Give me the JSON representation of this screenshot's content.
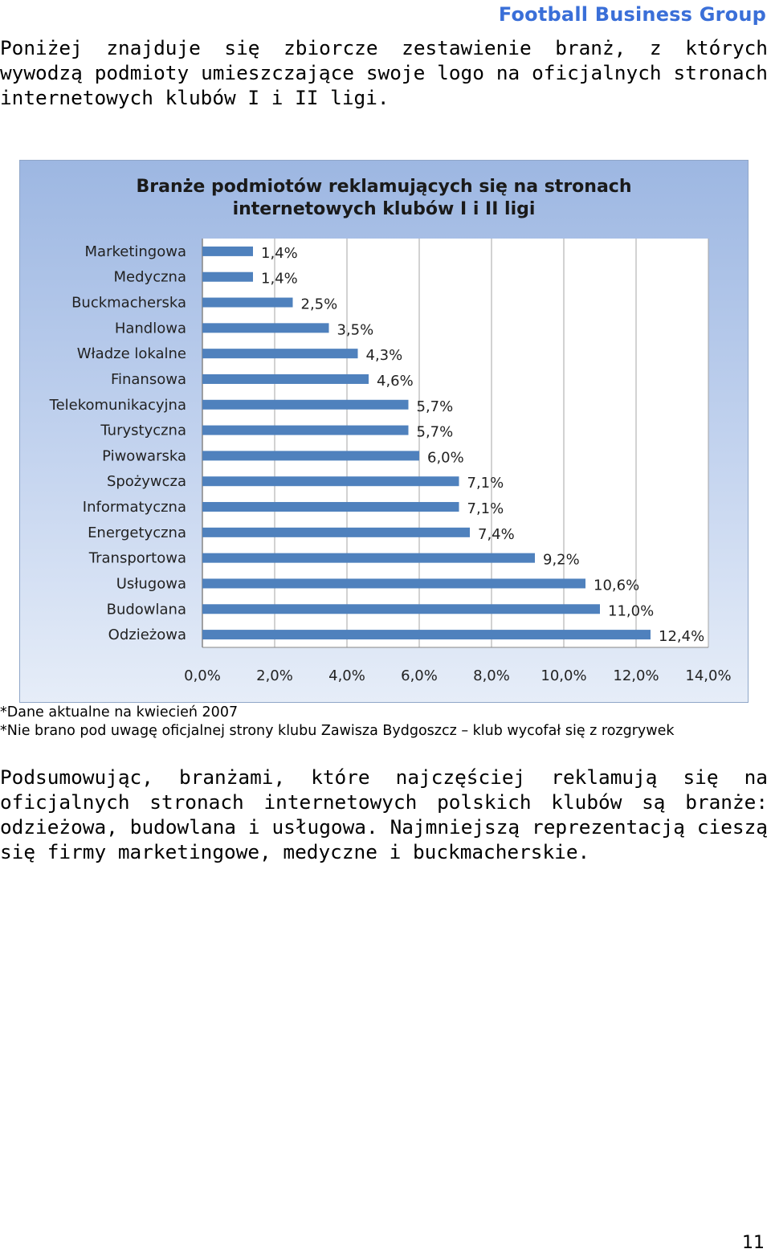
{
  "header": {
    "brand": "Football Business Group"
  },
  "intro": "Poniżej znajduje się zbiorcze zestawienie branż, z których wywodzą podmioty umieszczające swoje logo na oficjalnych stronach internetowych klubów I i II ligi.",
  "chart_data": {
    "type": "bar",
    "orientation": "horizontal",
    "title_line1": "Branże podmiotów reklamujących się na stronach",
    "title_line2": "internetowych klubów I i II ligi",
    "categories": [
      "Marketingowa",
      "Medyczna",
      "Buckmacherska",
      "Handlowa",
      "Władze lokalne",
      "Finansowa",
      "Telekomunikacyjna",
      "Turystyczna",
      "Piwowarska",
      "Spożywcza",
      "Informatyczna",
      "Energetyczna",
      "Transportowa",
      "Usługowa",
      "Budowlana",
      "Odzieżowa"
    ],
    "values": [
      1.4,
      1.4,
      2.5,
      3.5,
      4.3,
      4.6,
      5.7,
      5.7,
      6.0,
      7.1,
      7.1,
      7.4,
      9.2,
      10.6,
      11.0,
      12.4
    ],
    "data_labels": [
      "1,4%",
      "1,4%",
      "2,5%",
      "3,5%",
      "4,3%",
      "4,6%",
      "5,7%",
      "5,7%",
      "6,0%",
      "7,1%",
      "7,1%",
      "7,4%",
      "9,2%",
      "10,6%",
      "11,0%",
      "12,4%"
    ],
    "xlim": [
      0,
      14
    ],
    "x_ticks": [
      0,
      2,
      4,
      6,
      8,
      10,
      12,
      14
    ],
    "x_tick_labels": [
      "0,0%",
      "2,0%",
      "4,0%",
      "6,0%",
      "8,0%",
      "10,0%",
      "12,0%",
      "14,0%"
    ],
    "grid": true,
    "legend": "none",
    "bar_color": "#4f81bd"
  },
  "notes": {
    "line1": "*Dane aktualne na kwiecień 2007",
    "line2": "*Nie brano pod uwagę oficjalnej strony klubu Zawisza Bydgoszcz – klub wycofał się z rozgrywek"
  },
  "summary": "Podsumowując, branżami, które najczęściej reklamują się na oficjalnych stronach internetowych polskich klubów są branże: odzieżowa, budowlana i usługowa. Najmniejszą reprezentacją cieszą się firmy marketingowe, medyczne i buckmacherskie.",
  "page_number": "11"
}
